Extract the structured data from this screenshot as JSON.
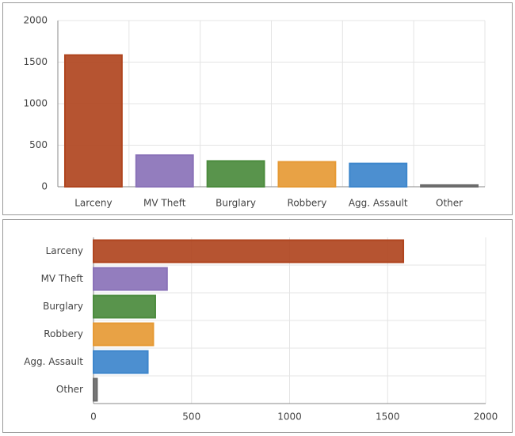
{
  "chart_data": [
    {
      "type": "bar",
      "orientation": "vertical",
      "categories": [
        "Larceny",
        "MV Theft",
        "Burglary",
        "Robbery",
        "Agg. Assault",
        "Other"
      ],
      "values": [
        1585,
        380,
        310,
        300,
        280,
        20
      ],
      "colors": [
        "#b0451f",
        "#8a72b8",
        "#4b8b3d",
        "#e69a35",
        "#3d86cc",
        "#6b6b6b"
      ],
      "ylim": [
        0,
        2000
      ],
      "yticks": [
        0,
        500,
        1000,
        1500,
        2000
      ],
      "grid": true
    },
    {
      "type": "bar",
      "orientation": "horizontal",
      "categories": [
        "Larceny",
        "MV Theft",
        "Burglary",
        "Robbery",
        "Agg. Assault",
        "Other"
      ],
      "values": [
        1580,
        375,
        315,
        305,
        277,
        18
      ],
      "colors": [
        "#b0451f",
        "#8a72b8",
        "#4b8b3d",
        "#e69a35",
        "#3d86cc",
        "#6b6b6b"
      ],
      "xlim": [
        0,
        2000
      ],
      "xticks": [
        0,
        500,
        1000,
        1500,
        2000
      ],
      "grid": true
    }
  ]
}
